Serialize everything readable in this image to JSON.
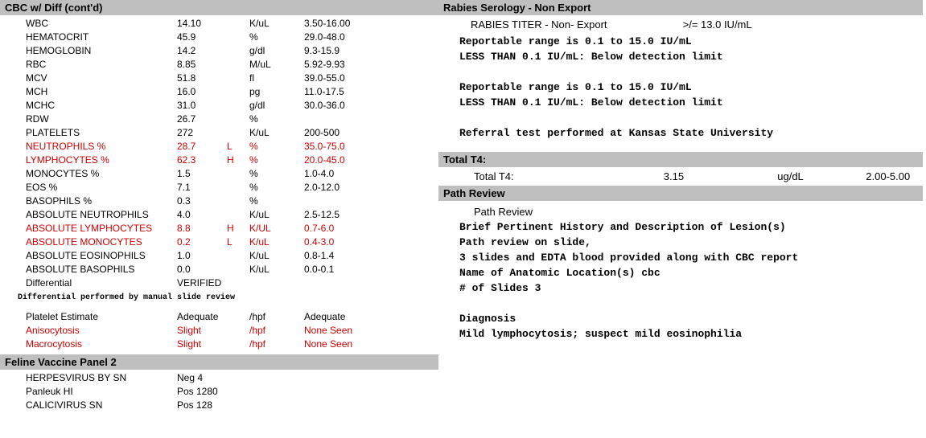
{
  "left": {
    "cbc": {
      "header": "CBC w/ Diff (cont'd)",
      "rows": [
        {
          "name": "WBC",
          "val": "14.10",
          "flag": "",
          "unit": "K/uL",
          "range": "3.50-16.00",
          "abn": false
        },
        {
          "name": "HEMATOCRIT",
          "val": "45.9",
          "flag": "",
          "unit": "%",
          "range": "29.0-48.0",
          "abn": false
        },
        {
          "name": "HEMOGLOBIN",
          "val": "14.2",
          "flag": "",
          "unit": "g/dl",
          "range": "9.3-15.9",
          "abn": false
        },
        {
          "name": "RBC",
          "val": "8.85",
          "flag": "",
          "unit": "M/uL",
          "range": "5.92-9.93",
          "abn": false
        },
        {
          "name": "MCV",
          "val": "51.8",
          "flag": "",
          "unit": "fl",
          "range": "39.0-55.0",
          "abn": false
        },
        {
          "name": "MCH",
          "val": "16.0",
          "flag": "",
          "unit": "pg",
          "range": "11.0-17.5",
          "abn": false
        },
        {
          "name": "MCHC",
          "val": "31.0",
          "flag": "",
          "unit": "g/dl",
          "range": "30.0-36.0",
          "abn": false
        },
        {
          "name": "RDW",
          "val": "26.7",
          "flag": "",
          "unit": "%",
          "range": "",
          "abn": false
        },
        {
          "name": "PLATELETS",
          "val": "272",
          "flag": "",
          "unit": "K/uL",
          "range": "200-500",
          "abn": false
        },
        {
          "name": "NEUTROPHILS %",
          "val": "28.7",
          "flag": "L",
          "unit": "%",
          "range": "35.0-75.0",
          "abn": true
        },
        {
          "name": "LYMPHOCYTES %",
          "val": "62.3",
          "flag": "H",
          "unit": "%",
          "range": "20.0-45.0",
          "abn": true
        },
        {
          "name": "MONOCYTES %",
          "val": "1.5",
          "flag": "",
          "unit": "%",
          "range": "1.0-4.0",
          "abn": false
        },
        {
          "name": "EOS %",
          "val": "7.1",
          "flag": "",
          "unit": "%",
          "range": "2.0-12.0",
          "abn": false
        },
        {
          "name": "BASOPHILS %",
          "val": "0.3",
          "flag": "",
          "unit": "%",
          "range": "",
          "abn": false
        },
        {
          "name": "ABSOLUTE NEUTROPHILS",
          "val": "4.0",
          "flag": "",
          "unit": "K/uL",
          "range": "2.5-12.5",
          "abn": false
        },
        {
          "name": "ABSOLUTE LYMPHOCYTES",
          "val": "8.8",
          "flag": "H",
          "unit": "K/UL",
          "range": "0.7-6.0",
          "abn": true
        },
        {
          "name": "ABSOLUTE MONOCYTES",
          "val": "0.2",
          "flag": "L",
          "unit": "K/uL",
          "range": "0.4-3.0",
          "abn": true
        },
        {
          "name": "ABSOLUTE EOSINOPHILS",
          "val": "1.0",
          "flag": "",
          "unit": "K/uL",
          "range": "0.8-1.4",
          "abn": false
        },
        {
          "name": "ABSOLUTE BASOPHILS",
          "val": "0.0",
          "flag": "",
          "unit": "K/uL",
          "range": "0.0-0.1",
          "abn": false
        },
        {
          "name": "Differential",
          "val": "VERIFIED",
          "flag": "",
          "unit": "",
          "range": "",
          "abn": false
        }
      ],
      "note": "Differential performed by manual slide review",
      "rows2": [
        {
          "name": "Platelet Estimate",
          "val": "Adequate",
          "unit": "/hpf",
          "range": "Adequate",
          "abn": false
        },
        {
          "name": "Anisocytosis",
          "val": "Slight",
          "unit": "/hpf",
          "range": "None Seen",
          "abn": true
        },
        {
          "name": "Macrocytosis",
          "val": "Slight",
          "unit": "/hpf",
          "range": "None Seen",
          "abn": true
        }
      ]
    },
    "vaccine": {
      "header": "Feline Vaccine Panel 2",
      "rows": [
        {
          "name": "HERPESVIRUS BY SN",
          "val": "Neg 4"
        },
        {
          "name": "Panleuk HI",
          "val": "Pos 1280"
        },
        {
          "name": "CALICIVIRUS SN",
          "val": "Pos 128"
        }
      ]
    }
  },
  "right": {
    "rabies": {
      "header": "Rabies Serology - Non Export",
      "title_left": "RABIES TITER - Non- Export",
      "title_right": ">/= 13.0 IU/mL",
      "lines": [
        "Reportable range is 0.1 to 15.0 IU/mL",
        "LESS THAN 0.1 IU/mL: Below detection limit",
        "",
        "Reportable range is 0.1 to 15.0 IU/mL",
        "LESS THAN 0.1 IU/mL: Below detection limit",
        "",
        "Referral test performed at Kansas State University"
      ]
    },
    "t4": {
      "header": "Total T4:",
      "name": "Total T4:",
      "val": "3.15",
      "unit": "ug/dL",
      "range": "2.00-5.00"
    },
    "path": {
      "header": "Path Review",
      "sub": "Path Review",
      "lines": [
        "Brief Pertinent History and Description of Lesion(s)",
        "Path review on slide,",
        "3 slides and EDTA blood provided along with CBC report",
        "Name of Anatomic Location(s) cbc",
        "# of Slides 3",
        "",
        "Diagnosis",
        "Mild lymphocytosis; suspect mild eosinophilia"
      ]
    }
  }
}
